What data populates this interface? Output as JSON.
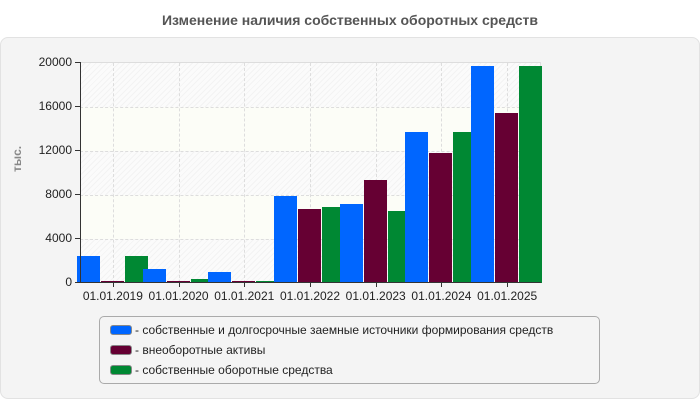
{
  "title": "Изменение наличия собственных оборотных средств",
  "colors": {
    "blue": "#0066ff",
    "maroon": "#660033",
    "green": "#008833"
  },
  "chart_data": {
    "type": "bar",
    "title": "Изменение наличия собственных оборотных средств",
    "xlabel": "",
    "ylabel": "тыс.",
    "ylim": [
      0,
      20000
    ],
    "yticks": [
      0,
      4000,
      8000,
      12000,
      16000,
      20000
    ],
    "grid": true,
    "legend_position": "bottom",
    "categories": [
      "01.01.2019",
      "01.01.2020",
      "01.01.2021",
      "01.01.2022",
      "01.01.2023",
      "01.01.2024",
      "01.01.2025"
    ],
    "series": [
      {
        "name": "собственные и долгосрочные заемные источники формирования средств",
        "color": "#0066ff",
        "values": [
          2450,
          1270,
          1000,
          7950,
          7200,
          13730,
          19730
        ]
      },
      {
        "name": "внеоборотные активы",
        "color": "#660033",
        "values": [
          100,
          100,
          100,
          6750,
          9400,
          11820,
          15450
        ]
      },
      {
        "name": "собственные оборотные средства",
        "color": "#008833",
        "values": [
          2450,
          360,
          100,
          6900,
          6550,
          13730,
          19730
        ]
      }
    ]
  },
  "legend": [
    {
      "label": "- собственные и долгосрочные заемные источники формирования средств"
    },
    {
      "label": "- внеоборотные активы"
    },
    {
      "label": "- собственные оборотные средства"
    }
  ]
}
